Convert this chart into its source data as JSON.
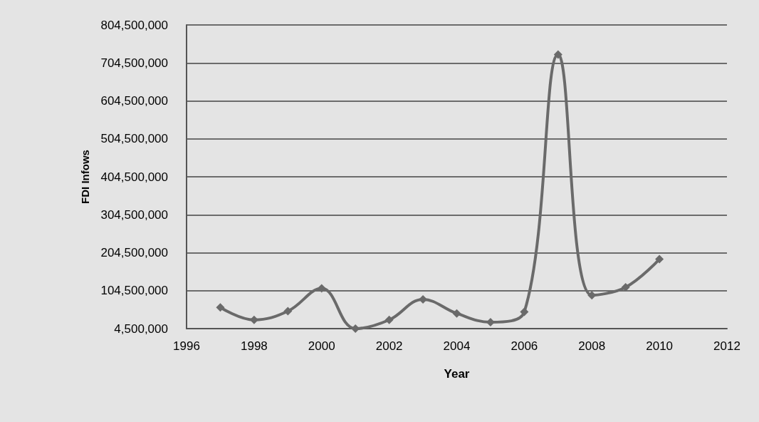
{
  "chart_data": {
    "type": "line",
    "xlabel": "Year",
    "ylabel": "FDI Infows",
    "x": [
      1997,
      1998,
      1999,
      2000,
      2001,
      2002,
      2003,
      2004,
      2005,
      2006,
      2007,
      2008,
      2009,
      2010
    ],
    "series": [
      {
        "color": "#6a6a6a",
        "values": [
          60500000,
          27500000,
          50500000,
          110500000,
          4500000,
          27500000,
          81500000,
          44500000,
          21500000,
          48500000,
          726500000,
          92500000,
          113500000,
          187500000
        ]
      }
    ],
    "xlim": [
      1996,
      2012
    ],
    "xticks": [
      1996,
      1998,
      2000,
      2002,
      2004,
      2006,
      2008,
      2010,
      2012
    ],
    "ylim": [
      4500000,
      804500000
    ],
    "yticks": [
      {
        "value": 4500000,
        "label": "4,500,000"
      },
      {
        "value": 104500000,
        "label": "104,500,000"
      },
      {
        "value": 204500000,
        "label": "204,500,000"
      },
      {
        "value": 304500000,
        "label": "304,500,000"
      },
      {
        "value": 404500000,
        "label": "404,500,000"
      },
      {
        "value": 504500000,
        "label": "504,500,000"
      },
      {
        "value": 604500000,
        "label": "604,500,000"
      },
      {
        "value": 704500000,
        "label": "704,500,000"
      },
      {
        "value": 804500000,
        "label": "804,500,000"
      }
    ],
    "grid": "y",
    "marker": "diamond",
    "line_style": "solid"
  }
}
